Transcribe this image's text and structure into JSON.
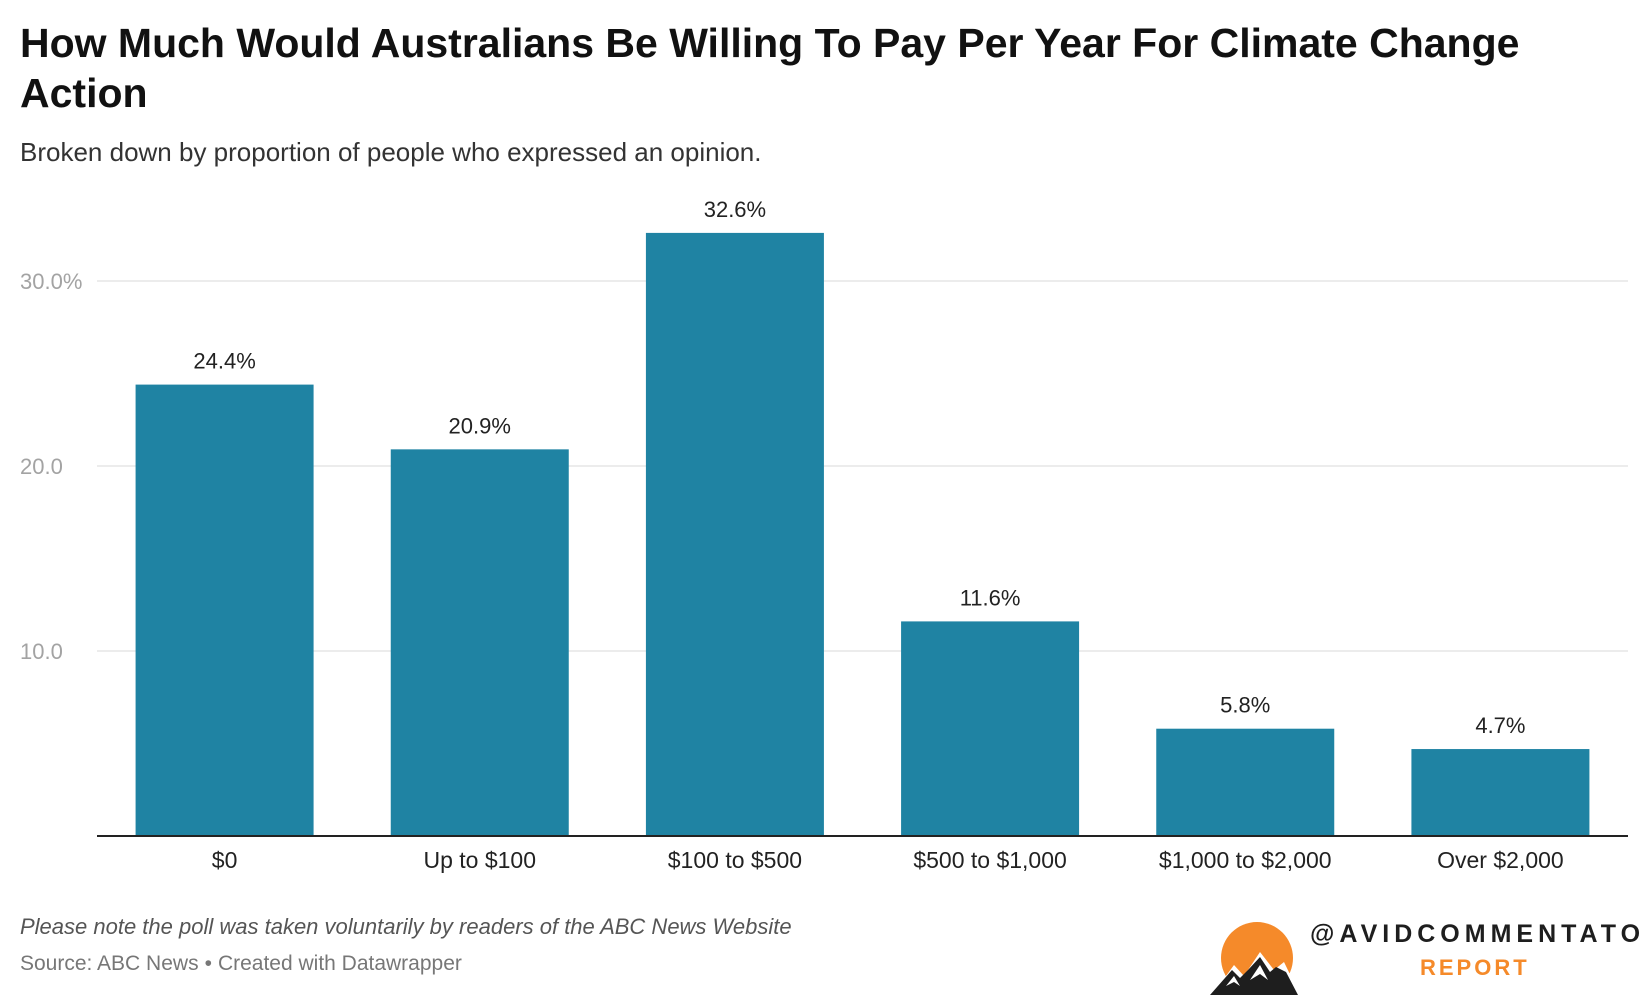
{
  "title": "How Much Would Australians Be Willing To Pay Per Year For Climate Change Action",
  "subtitle": "Broken down by proportion of people who expressed an opinion.",
  "colors": {
    "bar": "#1f83a3",
    "grid": "#e6e6e6",
    "axis": "#222222",
    "accent": "#f58a2a"
  },
  "chart_data": {
    "type": "bar",
    "categories": [
      "$0",
      "Up to $100",
      "$100 to $500",
      "$500 to $1,000",
      "$1,000 to $2,000",
      "Over $2,000"
    ],
    "values": [
      24.4,
      20.9,
      32.6,
      11.6,
      5.8,
      4.7
    ],
    "value_labels": [
      "24.4%",
      "20.9%",
      "32.6%",
      "11.6%",
      "5.8%",
      "4.7%"
    ],
    "ylim": [
      0,
      30
    ],
    "yticks": [
      10,
      20,
      30
    ],
    "ytick_labels": [
      "10.0",
      "20.0",
      "30.0%"
    ],
    "grid": true,
    "xlabel": "",
    "ylabel": ""
  },
  "footer": {
    "note": "Please note the poll was taken voluntarily by readers of the ABC News Website",
    "source": "Source: ABC News",
    "separator": "•",
    "credit": "Created with Datawrapper"
  },
  "brand": {
    "handle": "@AVIDCOMMENTATOR",
    "report": "REPORT",
    "logo_icon": "sun-over-mountains-icon"
  }
}
